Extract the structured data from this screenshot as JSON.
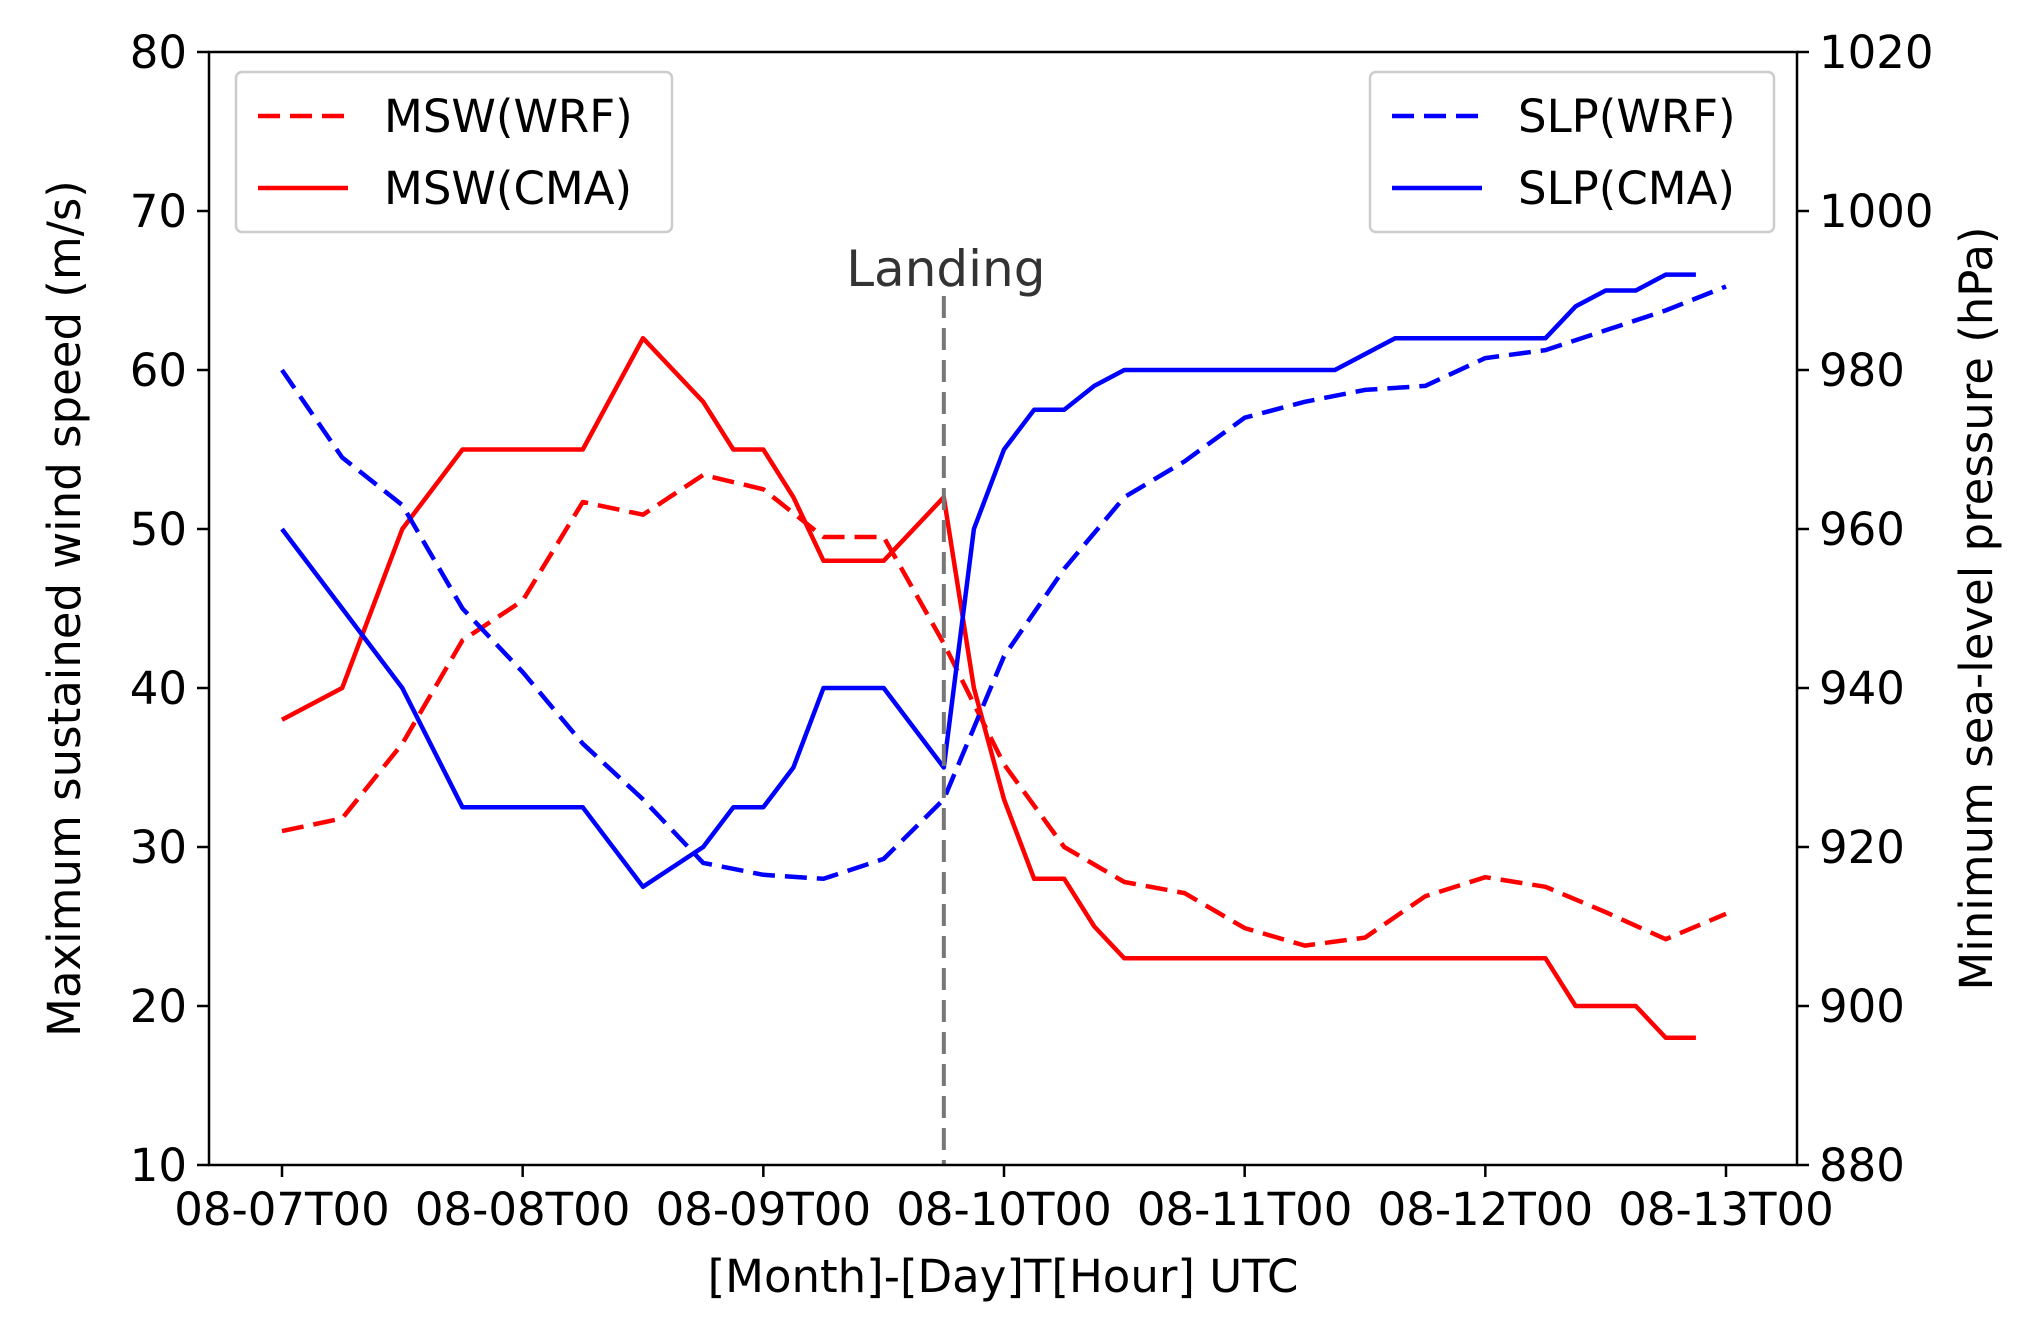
{
  "chart_data": {
    "type": "line",
    "title": "",
    "xlabel": "[Month]-[Day]T[Hour] UTC",
    "ylabel_left": "Maximum sustained wind speed (m/s)",
    "ylabel_right": "Minimum sea-level pressure (hPa)",
    "x_range_hours": [
      0,
      144
    ],
    "x_ticks": [
      {
        "hour": 0,
        "label": "08-07T00"
      },
      {
        "hour": 24,
        "label": "08-08T00"
      },
      {
        "hour": 48,
        "label": "08-09T00"
      },
      {
        "hour": 72,
        "label": "08-10T00"
      },
      {
        "hour": 96,
        "label": "08-11T00"
      },
      {
        "hour": 120,
        "label": "08-12T00"
      },
      {
        "hour": 144,
        "label": "08-13T00"
      }
    ],
    "ylim_left": [
      10,
      80
    ],
    "yticks_left": [
      "10",
      "20",
      "30",
      "40",
      "50",
      "60",
      "70",
      "80"
    ],
    "ylim_right": [
      880,
      1020
    ],
    "yticks_right": [
      "880",
      "900",
      "920",
      "940",
      "960",
      "980",
      "1000",
      "1020"
    ],
    "grid": false,
    "annotation": {
      "label": "Landing",
      "hour": 66
    },
    "legends": [
      {
        "placement": "top-left",
        "entries": [
          "MSW(WRF)",
          "MSW(CMA)"
        ]
      },
      {
        "placement": "top-right",
        "entries": [
          "SLP(WRF)",
          "SLP(CMA)"
        ]
      }
    ],
    "series": [
      {
        "name": "MSW(WRF)",
        "axis": "left",
        "color": "#ff0000",
        "dash": true,
        "points": [
          [
            0,
            31
          ],
          [
            6,
            31.8
          ],
          [
            12,
            36.5
          ],
          [
            18,
            43
          ],
          [
            24,
            45.5
          ],
          [
            30,
            51.7
          ],
          [
            36,
            50.9
          ],
          [
            42,
            53.4
          ],
          [
            48,
            52.5
          ],
          [
            54,
            49.5
          ],
          [
            60,
            49.5
          ],
          [
            66,
            42.8
          ],
          [
            72,
            35.2
          ],
          [
            78,
            30
          ],
          [
            84,
            27.8
          ],
          [
            90,
            27.1
          ],
          [
            96,
            24.9
          ],
          [
            102,
            23.8
          ],
          [
            108,
            24.3
          ],
          [
            114,
            26.9
          ],
          [
            120,
            28.1
          ],
          [
            126,
            27.5
          ],
          [
            132,
            25.9
          ],
          [
            138,
            24.2
          ],
          [
            144,
            25.8
          ]
        ]
      },
      {
        "name": "MSW(CMA)",
        "axis": "left",
        "color": "#ff0000",
        "dash": false,
        "points": [
          [
            0,
            38
          ],
          [
            6,
            40
          ],
          [
            12,
            50
          ],
          [
            18,
            55
          ],
          [
            24,
            55
          ],
          [
            30,
            55
          ],
          [
            36,
            62
          ],
          [
            42,
            58
          ],
          [
            45,
            55
          ],
          [
            48,
            55
          ],
          [
            51,
            52
          ],
          [
            54,
            48
          ],
          [
            60,
            48
          ],
          [
            66,
            52
          ],
          [
            69,
            40
          ],
          [
            72,
            33
          ],
          [
            75,
            28
          ],
          [
            78,
            28
          ],
          [
            81,
            25
          ],
          [
            84,
            23
          ],
          [
            96,
            23
          ],
          [
            120,
            23
          ],
          [
            126,
            23
          ],
          [
            129,
            20
          ],
          [
            132,
            20
          ],
          [
            135,
            20
          ],
          [
            138,
            18
          ],
          [
            141,
            18
          ]
        ]
      },
      {
        "name": "SLP(WRF)",
        "axis": "right",
        "color": "#0000ff",
        "dash": true,
        "points": [
          [
            0,
            980
          ],
          [
            6,
            969
          ],
          [
            12,
            963
          ],
          [
            18,
            950
          ],
          [
            24,
            942
          ],
          [
            30,
            933
          ],
          [
            36,
            926
          ],
          [
            42,
            918
          ],
          [
            48,
            916.5
          ],
          [
            54,
            916
          ],
          [
            60,
            918.5
          ],
          [
            66,
            926
          ],
          [
            72,
            944
          ],
          [
            78,
            955
          ],
          [
            84,
            964
          ],
          [
            90,
            968.5
          ],
          [
            96,
            974
          ],
          [
            102,
            976
          ],
          [
            108,
            977.5
          ],
          [
            114,
            978
          ],
          [
            120,
            981.5
          ],
          [
            126,
            982.5
          ],
          [
            132,
            985
          ],
          [
            138,
            987.5
          ],
          [
            144,
            990.5
          ]
        ]
      },
      {
        "name": "SLP(CMA)",
        "axis": "right",
        "color": "#0000ff",
        "dash": false,
        "points": [
          [
            0,
            960
          ],
          [
            6,
            950
          ],
          [
            12,
            940
          ],
          [
            18,
            925
          ],
          [
            24,
            925
          ],
          [
            30,
            925
          ],
          [
            36,
            915
          ],
          [
            42,
            920
          ],
          [
            45,
            925
          ],
          [
            48,
            925
          ],
          [
            51,
            930
          ],
          [
            54,
            940
          ],
          [
            60,
            940
          ],
          [
            66,
            930
          ],
          [
            69,
            960
          ],
          [
            72,
            970
          ],
          [
            75,
            975
          ],
          [
            78,
            975
          ],
          [
            81,
            978
          ],
          [
            84,
            980
          ],
          [
            96,
            980
          ],
          [
            105,
            980
          ],
          [
            111,
            984
          ],
          [
            120,
            984
          ],
          [
            126,
            984
          ],
          [
            129,
            988
          ],
          [
            132,
            990
          ],
          [
            135,
            990
          ],
          [
            138,
            992
          ],
          [
            141,
            992
          ]
        ]
      }
    ]
  }
}
